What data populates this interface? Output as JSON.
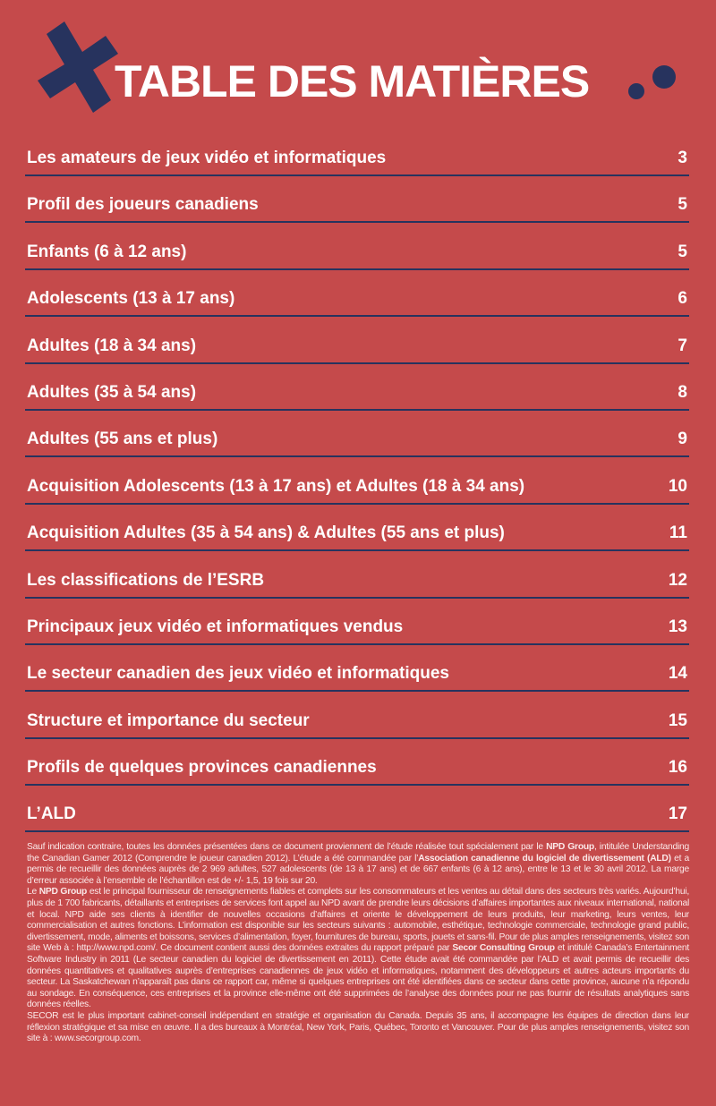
{
  "header": {
    "title": "TABLE DES MATIÈRES"
  },
  "toc": [
    {
      "label": "Les amateurs de jeux vidéo et informatiques",
      "page": "3"
    },
    {
      "label": "Profil des joueurs canadiens",
      "page": "5"
    },
    {
      "label": "Enfants (6 à 12 ans)",
      "page": "5"
    },
    {
      "label": "Adolescents (13 à 17 ans)",
      "page": "6"
    },
    {
      "label": "Adultes (18 à 34 ans)",
      "page": "7"
    },
    {
      "label": "Adultes (35 à 54 ans)",
      "page": "8"
    },
    {
      "label": "Adultes (55 ans et plus)",
      "page": "9"
    },
    {
      "label": "Acquisition Adolescents (13 à 17 ans) et Adultes (18 à 34 ans)",
      "page": "10"
    },
    {
      "label": "Acquisition Adultes (35 à 54 ans) & Adultes (55 ans et plus)",
      "page": "11"
    },
    {
      "label": "Les classifications de l’ESRB",
      "page": "12"
    },
    {
      "label": "Principaux jeux vidéo et informatiques vendus",
      "page": "13"
    },
    {
      "label": "Le secteur canadien des jeux vidéo et informatiques",
      "page": "14"
    },
    {
      "label": "Structure et importance du secteur",
      "page": "15"
    },
    {
      "label": "Profils de quelques provinces canadiennes",
      "page": "16"
    },
    {
      "label": "L’ALD",
      "page": "17"
    }
  ],
  "footer": {
    "paragraphs": [
      [
        "Sauf indication contraire, toutes les données présentées dans ce document proviennent de l’étude réalisée tout spécialement par le ",
        "NPD Group",
        ", intitulée Understanding the Canadian Gamer 2012 (Comprendre le joueur canadien 2012). L’étude a été commandée par l’",
        "Association canadienne du logiciel de divertissement (ALD)",
        " et a permis de recueillir des données auprès de 2 969 adultes, 527 adolescents (de 13 à 17 ans) et de 667 enfants (6 à 12 ans), entre le 13 et le 30 avril 2012. La marge d’erreur associée à l’ensemble de l’échantillon est de +/- 1,5, 19 fois sur 20."
      ],
      [
        "Le ",
        "NPD Group",
        " est le principal fournisseur de renseignements fiables et complets sur les consommateurs et les ventes au détail dans des secteurs très variés. Aujourd’hui, plus de 1 700 fabricants, détaillants et entreprises de services font appel au NPD avant de prendre leurs décisions d’affaires importantes aux niveaux international, national et local. NPD aide ses clients à identifier de nouvelles occasions d’affaires et oriente le développement de leurs produits, leur marketing, leurs ventes, leur commercialisation et autres fonctions. L’information est disponible sur les secteurs suivants : automobile, esthétique, technologie commerciale, technologie grand public, divertissement, mode, aliments et boissons, services d’alimentation, foyer, fournitures de bureau, sports, jouets et sans-fil. Pour de plus amples renseignements, visitez son site Web à : http://www.npd.com/. Ce document contient aussi des données extraites du rapport préparé par ",
        "Secor Consulting Group",
        " et intitulé Canada’s Entertainment Software Industry in 2011 (Le secteur canadien du logiciel de divertissement en 2011). Cette étude avait été commandée par l’ALD et avait permis de recueillir des données quantitatives et qualitatives auprès d’entreprises canadiennes de jeux vidéo et informatiques, notamment des développeurs et autres acteurs importants du secteur. La Saskatchewan n’apparaît pas dans ce rapport car, même si quelques entreprises ont été identifiées dans ce secteur dans cette province, aucune n’a répondu au sondage. En conséquence, ces entreprises et la province elle-même ont été supprimées de l’analyse des données pour ne pas fournir de résultats analytiques sans données réelles."
      ],
      [
        "SECOR est le plus important cabinet-conseil indépendant en stratégie et organisation du Canada. Depuis 35 ans, il accompagne les équipes de direction dans leur réflexion stratégique et sa mise en œuvre. Il a des bureaux à Montréal, New York, Paris, Québec, Toronto et Vancouver. Pour de plus amples renseignements, visitez son site à : www.secorgroup.com."
      ]
    ]
  }
}
